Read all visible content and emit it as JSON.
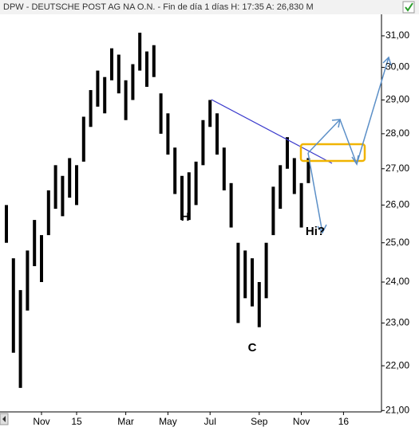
{
  "chart_data": {
    "type": "range",
    "title": "DPW - DEUTSCHE POST AG NA O.N. - Fin de día 1 días  H: 17:35  A: 26,830  M",
    "log": true,
    "color": "#000000",
    "categories": [
      null,
      null,
      null,
      null,
      null,
      "Nov",
      null,
      null,
      null,
      null,
      "15",
      null,
      null,
      null,
      null,
      null,
      null,
      "Mar",
      null,
      null,
      null,
      null,
      null,
      "May",
      null,
      null,
      null,
      null,
      null,
      "Jul",
      null,
      null,
      null,
      null,
      null,
      null,
      "Sep",
      null,
      null,
      null,
      null,
      null,
      "Nov",
      null,
      null,
      null,
      null,
      null,
      "16",
      null,
      null,
      null,
      null,
      null
    ],
    "high": [
      26.0,
      24.6,
      23.8,
      24.8,
      25.6,
      25.2,
      26.4,
      27.1,
      26.8,
      27.3,
      27.1,
      28.5,
      29.3,
      29.9,
      29.7,
      30.6,
      30.4,
      29.6,
      30.1,
      31.1,
      30.5,
      30.7,
      29.2,
      28.6,
      27.6,
      26.8,
      26.9,
      27.2,
      28.4,
      29.0,
      28.6,
      27.6,
      26.6,
      25.0,
      24.8,
      24.6,
      24.0,
      25.0,
      26.5,
      27.1,
      27.9,
      27.3,
      26.6,
      27.3,
      null,
      null,
      null,
      null,
      null,
      null,
      null,
      null,
      null,
      null
    ],
    "low": [
      25.0,
      22.3,
      21.5,
      23.3,
      24.4,
      24.0,
      25.2,
      25.9,
      25.7,
      26.2,
      26.0,
      27.2,
      28.2,
      28.8,
      28.6,
      29.6,
      29.2,
      28.4,
      29.0,
      29.9,
      29.4,
      29.7,
      28.0,
      27.4,
      26.3,
      25.6,
      25.6,
      26.0,
      27.1,
      28.2,
      27.4,
      26.4,
      25.4,
      23.0,
      23.6,
      23.4,
      22.9,
      23.6,
      25.2,
      25.9,
      27.0,
      26.3,
      25.4,
      26.6,
      null,
      null,
      null,
      null,
      null,
      null,
      null,
      null,
      null,
      null
    ],
    "ylim": [
      20.97,
      31.7
    ],
    "yticks": [
      {
        "value": 21,
        "label": "21,00"
      },
      {
        "value": 22,
        "label": "22,00"
      },
      {
        "value": 23,
        "label": "23,00"
      },
      {
        "value": 24,
        "label": "24,00"
      },
      {
        "value": 25,
        "label": "25,00"
      },
      {
        "value": 26,
        "label": "26,00"
      },
      {
        "value": 27,
        "label": "27,00"
      },
      {
        "value": 28,
        "label": "28,00"
      },
      {
        "value": 29,
        "label": "29,00"
      },
      {
        "value": 30,
        "label": "30,00"
      },
      {
        "value": 31,
        "label": "31,00"
      }
    ],
    "annotations": [
      "H",
      "C",
      "Hi?"
    ]
  }
}
